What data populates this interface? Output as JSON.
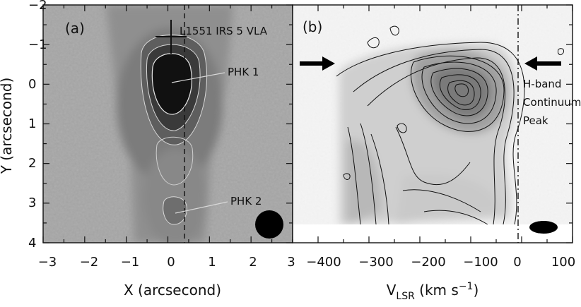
{
  "figure": {
    "panel_a": {
      "label": "(a)",
      "source_label": "L1551 IRS 5 VLA",
      "peak1_label": "PHK 1",
      "peak2_label": "PHK 2",
      "xlabel": "X (arcsecond)",
      "ylabel": "Y (arcsecond)",
      "xticks": [
        "−3",
        "−2",
        "−1",
        "0",
        "1",
        "2",
        "3"
      ],
      "yticks": [
        "−2",
        "−1",
        "0",
        "1",
        "2",
        "3",
        "4"
      ]
    },
    "panel_b": {
      "label": "(b)",
      "annotation_lines": [
        "H-band",
        "Continuum",
        "Peak"
      ],
      "xlabel_main": "V",
      "xlabel_sub": "LSR",
      "xlabel_rest": " (km s",
      "xlabel_sup": "−1",
      "xlabel_end": ")",
      "xticks": [
        "−400",
        "−300",
        "−200",
        "−100",
        "0",
        "100"
      ]
    }
  },
  "chart_data": [
    {
      "type": "image-contour",
      "title": "",
      "panel": "(a)",
      "xlabel": "X (arcsecond)",
      "ylabel": "Y (arcsecond)",
      "xlim": [
        -3,
        3
      ],
      "ylim": [
        4,
        -2
      ],
      "markers": [
        {
          "label": "L1551 IRS 5 VLA",
          "x": 0.0,
          "y": -1.2,
          "symbol": "cross"
        },
        {
          "label": "PHK 1",
          "x": 0.0,
          "y": 0.0
        },
        {
          "label": "PHK 2",
          "x": 0.1,
          "y": 3.2
        }
      ],
      "dashed_line_x": 0.35,
      "beam": "circle, bottom-right"
    },
    {
      "type": "image-contour",
      "title": "",
      "panel": "(b)",
      "xlabel": "V_LSR (km s^-1)",
      "ylabel": "Y (arcsecond)",
      "xlim": [
        -450,
        100
      ],
      "ylim": [
        4,
        -2
      ],
      "emission_peak": {
        "v": -100,
        "y": 0.0
      },
      "annotation": "H-band Continuum Peak",
      "arrow_y": -0.55,
      "dashed_line_v": 5,
      "beam": "ellipse, bottom-right"
    }
  ]
}
